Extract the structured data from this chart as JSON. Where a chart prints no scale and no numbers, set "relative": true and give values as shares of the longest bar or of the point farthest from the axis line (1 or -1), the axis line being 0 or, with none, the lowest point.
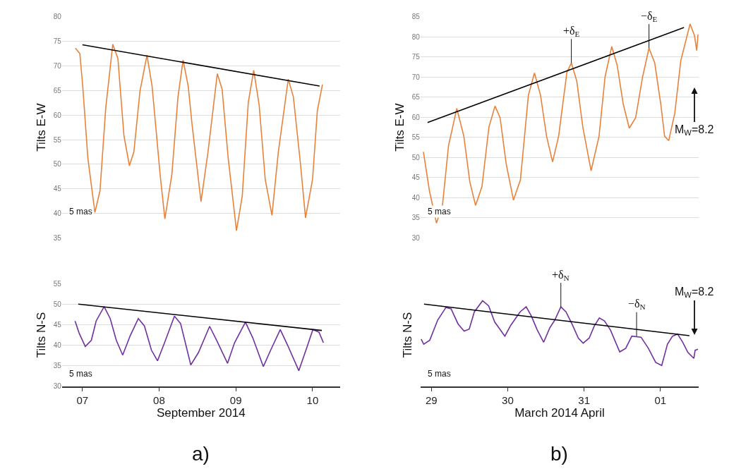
{
  "chart_data": [
    {
      "type": "line",
      "ylabel": "Tilts E-W",
      "xlim": [
        "2014-09-06T17:36",
        "2014-09-10T08:36"
      ],
      "ylim": [
        35,
        80
      ],
      "yticks": [
        35,
        40,
        45,
        50,
        55,
        60,
        65,
        70,
        75,
        80
      ],
      "grid": "y",
      "tick_labels": "y",
      "series": [
        {
          "color": "#e8823a",
          "x": [
            "2014-09-06T21:48",
            "2014-09-06T23:12",
            "2014-09-07T00:06",
            "2014-09-07T01:42",
            "2014-09-07T03:54",
            "2014-09-07T05:30",
            "2014-09-07T07:18",
            "2014-09-07T09:30",
            "2014-09-07T11:06",
            "2014-09-07T13:00",
            "2014-09-07T14:42",
            "2014-09-07T16:06",
            "2014-09-07T18:00",
            "2014-09-07T20:12",
            "2014-09-07T21:48",
            "2014-09-08T00:18",
            "2014-09-08T01:48",
            "2014-09-08T04:00",
            "2014-09-08T05:54",
            "2014-09-08T07:30",
            "2014-09-08T09:06",
            "2014-09-08T10:18",
            "2014-09-08T13:06",
            "2014-09-08T15:18",
            "2014-09-08T18:12",
            "2014-09-08T19:42",
            "2014-09-08T21:36",
            "2014-09-09T00:12",
            "2014-09-09T02:00",
            "2014-09-09T03:54",
            "2014-09-09T05:36",
            "2014-09-09T07:18",
            "2014-09-09T09:12",
            "2014-09-09T11:18",
            "2014-09-09T13:18",
            "2014-09-09T16:24",
            "2014-09-09T18:00",
            "2014-09-09T20:12",
            "2014-09-09T21:48",
            "2014-09-10T00:00",
            "2014-09-10T01:30",
            "2014-09-10T03:06"
          ],
          "values": [
            73.6,
            72.5,
            65.9,
            51.3,
            40.2,
            44.6,
            61.4,
            74.4,
            71.5,
            55.8,
            49.7,
            52.5,
            64.8,
            72.2,
            65.9,
            48.0,
            38.9,
            48.0,
            63.7,
            71.2,
            65.9,
            58.1,
            42.4,
            52.5,
            68.4,
            65.3,
            51.3,
            36.5,
            43.5,
            62.6,
            69.1,
            62.0,
            46.9,
            39.6,
            52.5,
            67.3,
            63.7,
            50.2,
            39.1,
            46.9,
            60.9,
            66.2
          ]
        },
        {
          "type": "line",
          "color": "#000000",
          "x": [
            "2014-09-07T00:00",
            "2014-09-10T02:12"
          ],
          "values": [
            74.3,
            65.9
          ]
        }
      ],
      "annotations": [
        "5 mas"
      ]
    },
    {
      "type": "line",
      "ylabel": "Tilts E-W",
      "xlim": [
        "2014-03-28T20:36",
        "2014-04-01T12:00"
      ],
      "ylim": [
        30,
        85
      ],
      "yticks": [
        30,
        35,
        40,
        45,
        50,
        55,
        60,
        65,
        70,
        75,
        80,
        85
      ],
      "grid": "y",
      "tick_labels": "y",
      "series": [
        {
          "color": "#e8823a",
          "x": [
            "2014-03-28T21:30",
            "2014-03-28T23:24",
            "2014-03-29T01:36",
            "2014-03-29T03:30",
            "2014-03-29T05:24",
            "2014-03-29T08:00",
            "2014-03-29T10:12",
            "2014-03-29T12:06",
            "2014-03-29T13:54",
            "2014-03-29T15:54",
            "2014-03-29T18:06",
            "2014-03-29T20:00",
            "2014-03-29T21:36",
            "2014-03-29T23:30",
            "2014-03-30T01:48",
            "2014-03-30T04:00",
            "2014-03-30T06:30",
            "2014-03-30T08:24",
            "2014-03-30T10:18",
            "2014-03-30T12:12",
            "2014-03-30T14:06",
            "2014-03-30T16:00",
            "2014-03-30T18:36",
            "2014-03-30T20:00",
            "2014-03-30T21:42",
            "2014-03-30T23:36",
            "2014-03-31T02:12",
            "2014-03-31T04:42",
            "2014-03-31T06:36",
            "2014-03-31T08:42",
            "2014-03-31T10:24",
            "2014-03-31T12:18",
            "2014-03-31T14:12",
            "2014-03-31T16:12",
            "2014-03-31T18:24",
            "2014-03-31T20:24",
            "2014-03-31T22:12",
            "2014-04-01T00:06",
            "2014-04-01T01:18",
            "2014-04-01T02:36",
            "2014-04-01T04:30",
            "2014-04-01T06:24",
            "2014-04-01T09:18",
            "2014-04-01T10:42",
            "2014-04-01T11:24",
            "2014-04-01T11:48"
          ],
          "values": [
            51.4,
            41.7,
            33.7,
            38.2,
            53.0,
            62.2,
            55.3,
            43.9,
            38.1,
            42.8,
            57.6,
            62.8,
            59.9,
            48.5,
            39.4,
            44.5,
            65.5,
            71.0,
            65.5,
            55.3,
            48.9,
            55.3,
            71.2,
            73.5,
            69.0,
            57.6,
            46.7,
            55.3,
            70.1,
            77.6,
            72.9,
            63.3,
            57.3,
            59.9,
            70.1,
            77.2,
            73.5,
            63.3,
            55.3,
            54.2,
            61.0,
            74.1,
            83.2,
            80.3,
            76.6,
            80.6
          ]
        },
        {
          "type": "line",
          "color": "#000000",
          "x": [
            "2014-03-28T22:48",
            "2014-04-01T07:24"
          ],
          "values": [
            58.7,
            82.3
          ]
        }
      ],
      "annotations": [
        "5 mas",
        {
          "text": "+δ$_{E}$",
          "x": "2014-03-30T20:00",
          "y": 73.5
        },
        {
          "text": "−δ$_{E}$",
          "x": "2014-03-31T20:24",
          "y": 77.2
        },
        "M$_{W}$=8.2"
      ]
    },
    {
      "type": "line",
      "ylabel": "Tilts N-S",
      "xlabel": "September 2014",
      "xlim": [
        "2014-09-06T17:36",
        "2014-09-10T08:36"
      ],
      "xticks": [
        {
          "value": "2014-09-07",
          "label": "07"
        },
        {
          "value": "2014-09-08",
          "label": "08"
        },
        {
          "value": "2014-09-09",
          "label": "09"
        },
        {
          "value": "2014-09-10",
          "label": "10"
        }
      ],
      "ylim": [
        30,
        55
      ],
      "yticks": [
        30,
        35,
        40,
        45,
        50,
        55
      ],
      "grid": "y",
      "series": [
        {
          "color": "#7030a0",
          "x": [
            "2014-09-06T21:42",
            "2014-09-06T23:00",
            "2014-09-07T00:54",
            "2014-09-07T02:48",
            "2014-09-07T04:18",
            "2014-09-07T06:48",
            "2014-09-07T08:42",
            "2014-09-07T10:36",
            "2014-09-07T12:36",
            "2014-09-07T15:00",
            "2014-09-07T17:30",
            "2014-09-07T19:24",
            "2014-09-07T21:36",
            "2014-09-07T23:30",
            "2014-09-08T01:42",
            "2014-09-08T04:48",
            "2014-09-08T06:42",
            "2014-09-08T08:12",
            "2014-09-08T09:54",
            "2014-09-08T12:18",
            "2014-09-08T15:48",
            "2014-09-08T18:00",
            "2014-09-08T21:24",
            "2014-09-08T23:36",
            "2014-09-09T03:00",
            "2014-09-09T05:18",
            "2014-09-09T08:36",
            "2014-09-09T10:54",
            "2014-09-09T13:54",
            "2014-09-09T16:12",
            "2014-09-09T19:42",
            "2014-09-09T22:12",
            "2014-09-10T00:06",
            "2014-09-10T02:00",
            "2014-09-10T03:24"
          ],
          "values": [
            45.9,
            42.9,
            39.7,
            41.2,
            45.9,
            49.4,
            46.5,
            41.2,
            37.6,
            42.4,
            46.5,
            44.7,
            38.8,
            36.2,
            40.6,
            47.1,
            45.3,
            40.6,
            35.2,
            38.2,
            44.6,
            41.2,
            35.6,
            40.6,
            45.6,
            41.8,
            34.8,
            38.8,
            43.8,
            40.0,
            33.8,
            39.4,
            43.8,
            43.2,
            40.6
          ]
        },
        {
          "type": "line",
          "color": "#000000",
          "x": [
            "2014-09-06T22:42",
            "2014-09-10T02:54"
          ],
          "values": [
            50.0,
            43.6
          ]
        }
      ],
      "annotations": [
        "5 mas",
        "a)"
      ]
    },
    {
      "type": "line",
      "ylabel": "Tilts N-S",
      "xlabel": "March 2014 April",
      "relative": true,
      "xlim": [
        "2014-03-28T20:36",
        "2014-04-01T12:00"
      ],
      "xticks": [
        {
          "value": "2014-03-29",
          "label": "29"
        },
        {
          "value": "2014-03-30",
          "label": "30"
        },
        {
          "value": "2014-03-31",
          "label": "31"
        },
        {
          "value": "2014-04-01",
          "label": "01"
        }
      ],
      "tick_labels": "x",
      "series": [
        {
          "color": "#7030a0",
          "x": [
            "2014-03-28T20:48",
            "2014-03-28T21:36",
            "2014-03-28T23:30",
            "2014-03-29T02:00",
            "2014-03-29T04:36",
            "2014-03-29T06:12",
            "2014-03-29T08:24",
            "2014-03-29T10:18",
            "2014-03-29T11:54",
            "2014-03-29T13:30",
            "2014-03-29T16:06",
            "2014-03-29T18:00",
            "2014-03-29T19:54",
            "2014-03-29T23:06",
            "2014-03-30T01:00",
            "2014-03-30T03:54",
            "2014-03-30T05:48",
            "2014-03-30T07:24",
            "2014-03-30T09:18",
            "2014-03-30T11:18",
            "2014-03-30T13:12",
            "2014-03-30T14:48",
            "2014-03-30T16:42",
            "2014-03-30T18:18",
            "2014-03-30T20:12",
            "2014-03-30T22:12",
            "2014-03-30T23:42",
            "2014-03-31T01:36",
            "2014-03-31T03:12",
            "2014-03-31T04:48",
            "2014-03-31T06:24",
            "2014-03-31T08:18",
            "2014-03-31T11:12",
            "2014-03-31T13:06",
            "2014-03-31T15:00",
            "2014-03-31T17:54",
            "2014-03-31T20:12",
            "2014-03-31T22:30",
            "2014-04-01T00:24",
            "2014-04-01T02:12",
            "2014-04-01T03:48",
            "2014-04-01T05:24",
            "2014-04-01T07:00",
            "2014-04-01T08:36",
            "2014-04-01T10:30",
            "2014-04-01T10:54",
            "2014-04-01T11:48"
          ],
          "values": [
            0.551,
            0.492,
            0.539,
            0.775,
            0.922,
            0.905,
            0.728,
            0.645,
            0.669,
            0.87,
            1.0,
            0.941,
            0.752,
            0.586,
            0.716,
            0.87,
            0.929,
            0.823,
            0.657,
            0.515,
            0.681,
            0.775,
            0.929,
            0.87,
            0.728,
            0.563,
            0.504,
            0.563,
            0.704,
            0.799,
            0.764,
            0.657,
            0.402,
            0.444,
            0.586,
            0.574,
            0.444,
            0.279,
            0.243,
            0.492,
            0.586,
            0.61,
            0.515,
            0.397,
            0.326,
            0.421,
            0.433
          ]
        },
        {
          "type": "line",
          "color": "#000000",
          "x": [
            "2014-03-28T21:42",
            "2014-04-01T09:06"
          ],
          "values": [
            0.96,
            0.591
          ]
        }
      ],
      "annotations": [
        "5 mas",
        {
          "text": "+δ$_{N}$",
          "x": "2014-03-30T16:42",
          "y": 0.929
        },
        {
          "text": "−δ$_{N}$",
          "x": "2014-03-31T16:30",
          "y": 0.586
        },
        "M$_{W}$=8.2",
        "b)"
      ]
    }
  ]
}
